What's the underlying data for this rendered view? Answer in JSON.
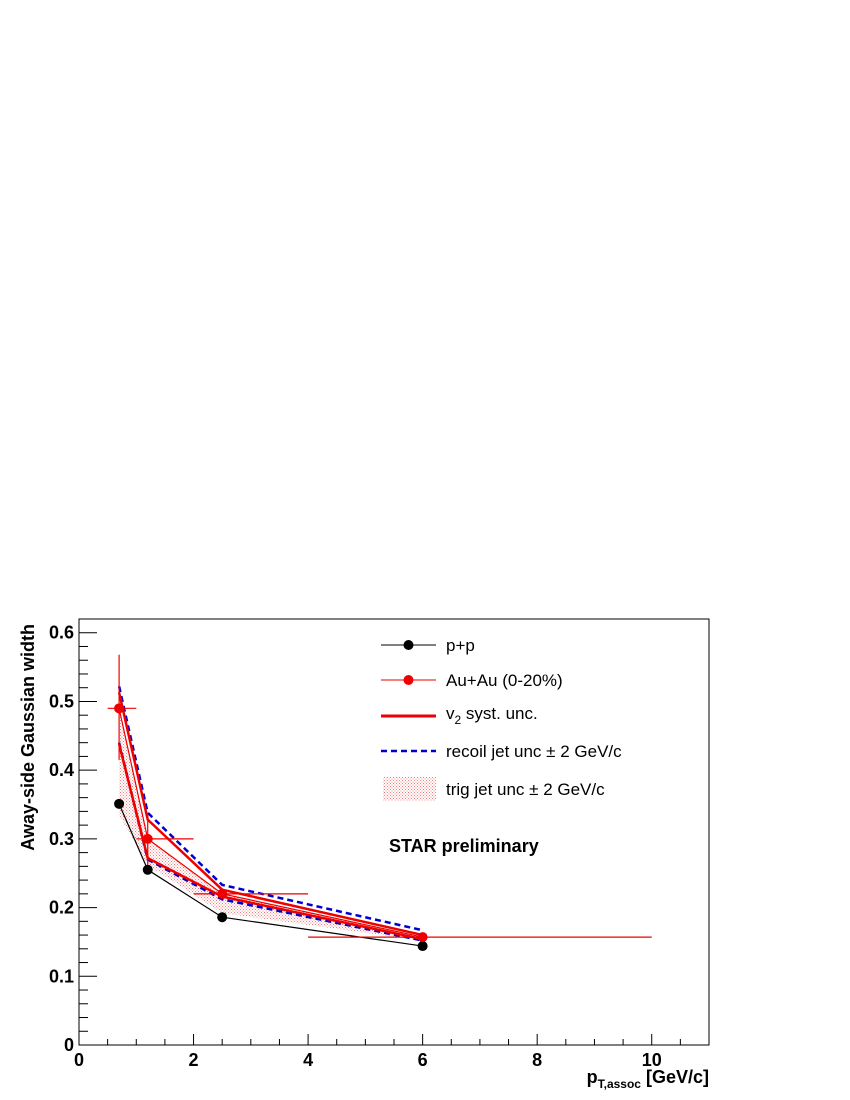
{
  "chart_data": {
    "type": "scatter",
    "xlabel_main": "p",
    "xlabel_sub": "T,assoc",
    "xlabel_unit": " [GeV/c]",
    "ylabel": "Away-side Gaussian width",
    "xlim": [
      0,
      11
    ],
    "ylim": [
      0,
      0.62
    ],
    "x_ticks": [
      "0",
      "2",
      "4",
      "6",
      "8",
      "10"
    ],
    "y_ticks": [
      "0",
      "0.1",
      "0.2",
      "0.3",
      "0.4",
      "0.5",
      "0.6"
    ],
    "annotation": "STAR preliminary",
    "legend_position": "top-right",
    "series": [
      {
        "name": "p+p",
        "color": "#000000",
        "points": [
          {
            "x": 0.7,
            "y": 0.351
          },
          {
            "x": 1.2,
            "y": 0.255
          },
          {
            "x": 2.5,
            "y": 0.186
          },
          {
            "x": 6.0,
            "y": 0.144
          }
        ]
      },
      {
        "name": "Au+Au (0-20%)",
        "color": "#ee0000",
        "points": [
          {
            "x": 0.7,
            "y": 0.49,
            "xlo": 0.5,
            "xhi": 1.0,
            "ylo": 0.415,
            "yhi": 0.568
          },
          {
            "x": 1.2,
            "y": 0.3,
            "xlo": 1.0,
            "xhi": 2.0,
            "ylo": 0.262,
            "yhi": 0.338
          },
          {
            "x": 2.5,
            "y": 0.22,
            "xlo": 2.0,
            "xhi": 4.0,
            "ylo": 0.213,
            "yhi": 0.227
          },
          {
            "x": 6.0,
            "y": 0.157,
            "xlo": 4.0,
            "xhi": 10.0,
            "ylo": 0.154,
            "yhi": 0.16
          }
        ]
      }
    ],
    "v2_syst_unc": {
      "name": "v",
      "name_sub": "2",
      "name_rest": " syst. unc.",
      "color": "#ee0000",
      "upper": [
        [
          0.7,
          0.513
        ],
        [
          1.2,
          0.328
        ],
        [
          2.5,
          0.226
        ],
        [
          6.0,
          0.16
        ]
      ],
      "lower": [
        [
          0.7,
          0.438
        ],
        [
          1.2,
          0.272
        ],
        [
          2.5,
          0.216
        ],
        [
          6.0,
          0.154
        ]
      ]
    },
    "recoil_jet_unc": {
      "name": "recoil jet unc ± 2 GeV/c",
      "color": "#0000cc",
      "upper": [
        [
          0.7,
          0.522
        ],
        [
          1.2,
          0.338
        ],
        [
          2.5,
          0.233
        ],
        [
          6.0,
          0.167
        ]
      ],
      "lower": [
        [
          0.7,
          0.44
        ],
        [
          1.2,
          0.27
        ],
        [
          2.5,
          0.212
        ],
        [
          6.0,
          0.152
        ]
      ]
    },
    "trig_jet_unc": {
      "name": "trig jet unc ± 2 GeV/c",
      "color": "#f4a0a0",
      "upper": [
        [
          0.7,
          0.49
        ],
        [
          1.2,
          0.3
        ],
        [
          2.5,
          0.22
        ],
        [
          6.0,
          0.157
        ]
      ],
      "lower": [
        [
          0.7,
          0.335
        ],
        [
          1.2,
          0.262
        ],
        [
          2.5,
          0.192
        ],
        [
          6.0,
          0.152
        ]
      ]
    }
  }
}
